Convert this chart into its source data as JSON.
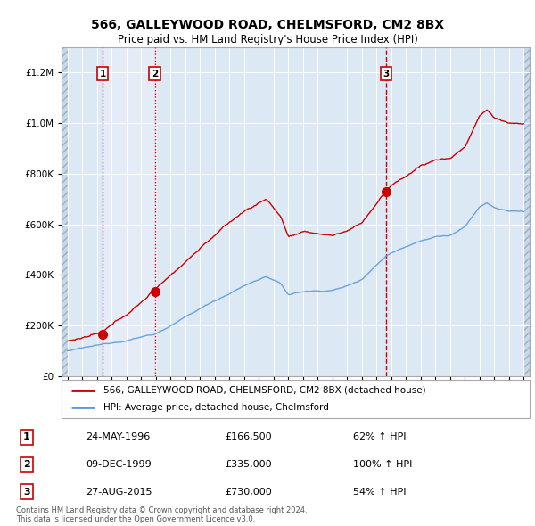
{
  "title_line1": "566, GALLEYWOOD ROAD, CHELMSFORD, CM2 8BX",
  "title_line2": "Price paid vs. HM Land Registry's House Price Index (HPI)",
  "background_color": "#ffffff",
  "plot_bg_color": "#dce9f5",
  "grid_color": "#ffffff",
  "sale_dates_num": [
    1996.39,
    1999.94,
    2015.66
  ],
  "sale_prices": [
    166500,
    335000,
    730000
  ],
  "sale_labels": [
    "1",
    "2",
    "3"
  ],
  "legend_entries": [
    "566, GALLEYWOOD ROAD, CHELMSFORD, CM2 8BX (detached house)",
    "HPI: Average price, detached house, Chelmsford"
  ],
  "sale_color": "#cc0000",
  "hpi_color": "#5b9bd5",
  "table_rows": [
    [
      "1",
      "24-MAY-1996",
      "£166,500",
      "62% ↑ HPI"
    ],
    [
      "2",
      "09-DEC-1999",
      "£335,000",
      "100% ↑ HPI"
    ],
    [
      "3",
      "27-AUG-2015",
      "£730,000",
      "54% ↑ HPI"
    ]
  ],
  "footer_text": "Contains HM Land Registry data © Crown copyright and database right 2024.\nThis data is licensed under the Open Government Licence v3.0.",
  "xmin": 1993.6,
  "xmax": 2025.4,
  "ymin": 0,
  "ymax": 1300000
}
